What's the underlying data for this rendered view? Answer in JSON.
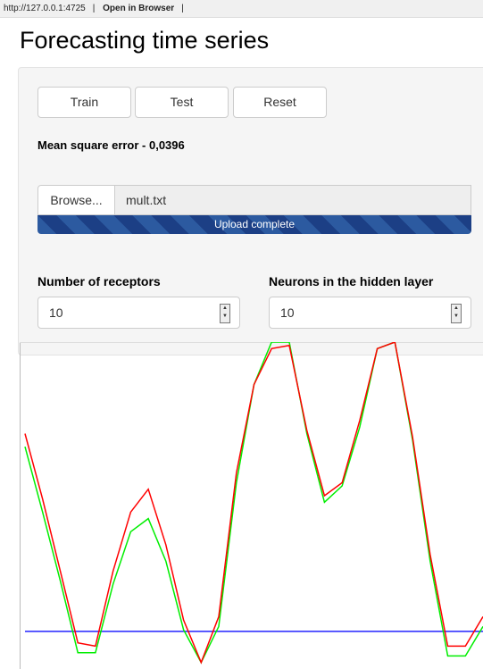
{
  "browser": {
    "url": "http://127.0.0.1:4725",
    "open": "Open in Browser"
  },
  "title": "Forecasting time series",
  "buttons": [
    "Train",
    "Test",
    "Reset"
  ],
  "mse": "Mean square error - 0,0396",
  "file": {
    "button": "Browse...",
    "name": "mult.txt",
    "status": "Upload complete"
  },
  "inputs": [
    {
      "label": "Number of receptors",
      "value": 10
    },
    {
      "label": "Neurons in the hidden layer",
      "value": 10
    }
  ],
  "chart_data": {
    "type": "line",
    "ylim": [
      0,
      1
    ],
    "series": [
      {
        "color": "#ff0000",
        "values": [
          0.72,
          0.52,
          0.3,
          0.08,
          0.07,
          0.3,
          0.48,
          0.55,
          0.38,
          0.15,
          0.02,
          0.16,
          0.6,
          0.87,
          0.98,
          0.99,
          0.73,
          0.53,
          0.57,
          0.76,
          0.98,
          1.0,
          0.71,
          0.35,
          0.07,
          0.07,
          0.16
        ]
      },
      {
        "color": "#00ee00",
        "values": [
          0.68,
          0.48,
          0.27,
          0.05,
          0.05,
          0.26,
          0.42,
          0.46,
          0.33,
          0.12,
          0.02,
          0.13,
          0.57,
          0.87,
          1.0,
          1.0,
          0.72,
          0.51,
          0.56,
          0.74,
          0.98,
          1.0,
          0.7,
          0.33,
          0.04,
          0.04,
          0.13
        ]
      },
      {
        "color": "#2222ff",
        "values": [
          0.115,
          0.115,
          0.115,
          0.115,
          0.115,
          0.115,
          0.115,
          0.115,
          0.115,
          0.115,
          0.115,
          0.115,
          0.115,
          0.115,
          0.115,
          0.115,
          0.115,
          0.115,
          0.115,
          0.115,
          0.115,
          0.115,
          0.115,
          0.115,
          0.115,
          0.115,
          0.115
        ]
      }
    ]
  }
}
